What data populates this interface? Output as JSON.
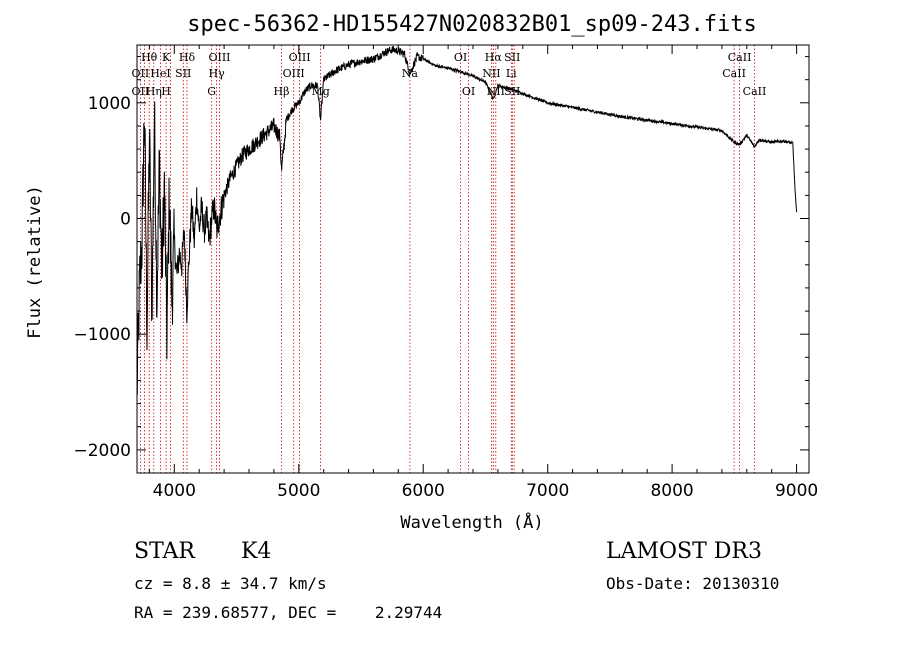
{
  "chart_data": {
    "type": "line",
    "title": "spec-56362-HD155427N020832B01_sp09-243.fits",
    "xlabel": "Wavelength (Å)",
    "ylabel": "Flux (relative)",
    "xlim": [
      3700,
      9100
    ],
    "ylim": [
      -2200,
      1500
    ],
    "xticks": [
      4000,
      5000,
      6000,
      7000,
      8000,
      9000
    ],
    "yticks": [
      -2000,
      -1000,
      0,
      1000
    ],
    "xtick_labels": [
      "4000",
      "5000",
      "6000",
      "7000",
      "8000",
      "9000"
    ],
    "ytick_labels": [
      "−2000",
      "−1000",
      "0",
      "1000"
    ],
    "series": [
      {
        "name": "spectrum",
        "x": [
          3700,
          3720,
          3740,
          3760,
          3780,
          3800,
          3820,
          3840,
          3860,
          3880,
          3900,
          3920,
          3940,
          3960,
          3980,
          4000,
          4020,
          4040,
          4060,
          4080,
          4100,
          4120,
          4140,
          4160,
          4180,
          4200,
          4220,
          4240,
          4260,
          4280,
          4300,
          4320,
          4340,
          4360,
          4380,
          4400,
          4450,
          4500,
          4550,
          4600,
          4650,
          4700,
          4750,
          4800,
          4850,
          4861,
          4900,
          4950,
          5000,
          5050,
          5100,
          5150,
          5175,
          5200,
          5300,
          5400,
          5500,
          5600,
          5700,
          5750,
          5800,
          5850,
          5893,
          5950,
          6000,
          6050,
          6100,
          6200,
          6300,
          6400,
          6500,
          6563,
          6600,
          6700,
          6800,
          6900,
          7000,
          7200,
          7400,
          7600,
          7800,
          8000,
          8200,
          8400,
          8498,
          8542,
          8600,
          8662,
          8700,
          8800,
          8900,
          8970,
          8985,
          9000
        ],
        "y": [
          -1500,
          -600,
          -200,
          950,
          -900,
          700,
          -800,
          900,
          -700,
          500,
          -500,
          300,
          -1000,
          200,
          -700,
          -200,
          -500,
          -300,
          -400,
          -100,
          -800,
          -300,
          100,
          -200,
          200,
          -100,
          100,
          -100,
          0,
          -200,
          0,
          100,
          -100,
          0,
          100,
          200,
          350,
          450,
          550,
          600,
          650,
          700,
          750,
          800,
          700,
          400,
          850,
          950,
          1000,
          1100,
          1150,
          1150,
          850,
          1200,
          1280,
          1330,
          1360,
          1380,
          1440,
          1460,
          1450,
          1420,
          1250,
          1400,
          1380,
          1350,
          1320,
          1300,
          1270,
          1230,
          1180,
          1030,
          1150,
          1120,
          1080,
          1040,
          1000,
          960,
          920,
          880,
          850,
          820,
          790,
          760,
          660,
          640,
          720,
          620,
          680,
          660,
          670,
          650,
          300,
          50
        ]
      }
    ],
    "lines": [
      {
        "w": 3727,
        "upper": "",
        "mid": "OII",
        "low": "OII"
      },
      {
        "w": 3760,
        "upper": "",
        "mid": "",
        "low": ""
      },
      {
        "w": 3798,
        "upper": "Hθ",
        "mid": "",
        "low": ""
      },
      {
        "w": 3835,
        "upper": "",
        "mid": "",
        "low": "Hη"
      },
      {
        "w": 3889,
        "upper": "",
        "mid": "HeI",
        "low": ""
      },
      {
        "w": 3934,
        "upper": "K",
        "mid": "",
        "low": "H"
      },
      {
        "w": 3969,
        "upper": "",
        "mid": "",
        "low": ""
      },
      {
        "w": 4072,
        "upper": "",
        "mid": "SII",
        "low": ""
      },
      {
        "w": 4102,
        "upper": "Hδ",
        "mid": "",
        "low": ""
      },
      {
        "w": 4300,
        "upper": "",
        "mid": "",
        "low": "G"
      },
      {
        "w": 4340,
        "upper": "",
        "mid": "Hγ",
        "low": ""
      },
      {
        "w": 4363,
        "upper": "OIII",
        "mid": "",
        "low": ""
      },
      {
        "w": 4861,
        "upper": "",
        "mid": "",
        "low": "Hβ"
      },
      {
        "w": 4959,
        "upper": "",
        "mid": "OIII",
        "low": ""
      },
      {
        "w": 5007,
        "upper": "OIII",
        "mid": "",
        "low": ""
      },
      {
        "w": 5175,
        "upper": "",
        "mid": "",
        "low": "Mg"
      },
      {
        "w": 5893,
        "upper": "",
        "mid": "Na",
        "low": ""
      },
      {
        "w": 6300,
        "upper": "OI",
        "mid": "",
        "low": ""
      },
      {
        "w": 6364,
        "upper": "",
        "mid": "",
        "low": "OI"
      },
      {
        "w": 6548,
        "upper": "",
        "mid": "NII",
        "low": ""
      },
      {
        "w": 6563,
        "upper": "Hα",
        "mid": "",
        "low": ""
      },
      {
        "w": 6583,
        "upper": "",
        "mid": "",
        "low": "NII"
      },
      {
        "w": 6708,
        "upper": "",
        "mid": "Li",
        "low": ""
      },
      {
        "w": 6716,
        "upper": "SII",
        "mid": "",
        "low": "SII"
      },
      {
        "w": 6731,
        "upper": "",
        "mid": "",
        "low": ""
      },
      {
        "w": 8498,
        "upper": "",
        "mid": "CaII",
        "low": ""
      },
      {
        "w": 8542,
        "upper": "CaII",
        "mid": "",
        "low": ""
      },
      {
        "w": 8662,
        "upper": "",
        "mid": "",
        "low": "CaII"
      }
    ]
  },
  "info": {
    "class_label": "STAR",
    "subclass": "K4",
    "survey": "LAMOST DR3",
    "cz": "cz = 8.8 ± 34.7 km/s",
    "obs_date": "Obs-Date: 20130310",
    "radec": "RA = 239.68577, DEC =    2.29744"
  },
  "colors": {
    "line_marker": "#cc0000",
    "spectrum": "#000000",
    "axis": "#000000"
  }
}
